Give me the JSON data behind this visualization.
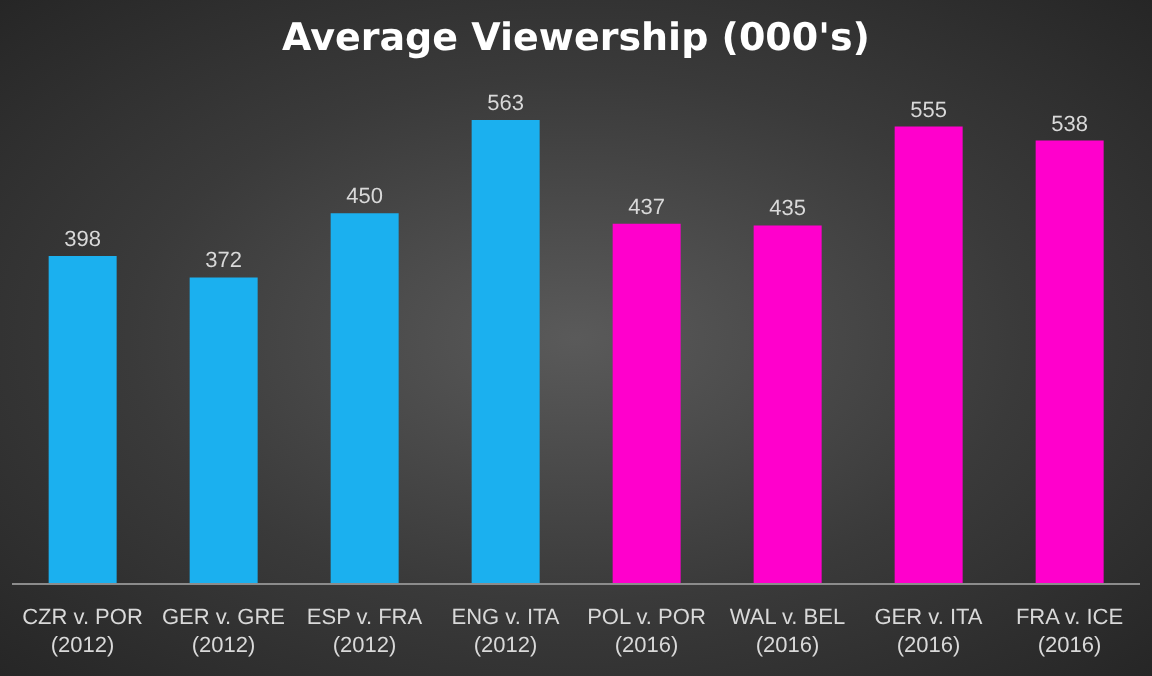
{
  "chart_data": {
    "type": "bar",
    "title": "Average Viewership (000's)",
    "categories": [
      "CZR v. POR (2012)",
      "GER v. GRE (2012)",
      "ESP v. FRA (2012)",
      "ENG v. ITA (2012)",
      "POL v. POR (2016)",
      "WAL v. BEL (2016)",
      "GER v. ITA (2016)",
      "FRA v. ICE (2016)"
    ],
    "values": [
      398,
      372,
      450,
      563,
      437,
      435,
      555,
      538
    ],
    "colors": [
      "#1bb0ef",
      "#1bb0ef",
      "#1bb0ef",
      "#1bb0ef",
      "#ff00cc",
      "#ff00cc",
      "#ff00cc",
      "#ff00cc"
    ],
    "data_labels": true,
    "grid": false,
    "legend": false
  }
}
